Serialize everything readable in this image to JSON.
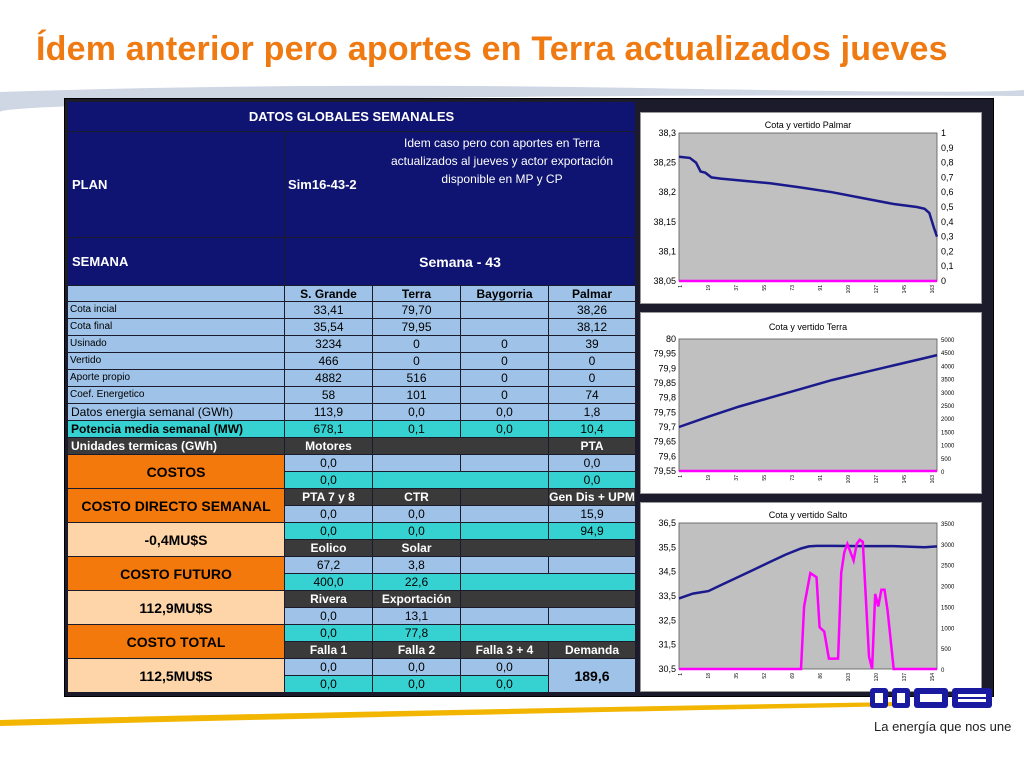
{
  "title": "Ídem anterior pero aportes en Terra actualizados jueves",
  "table": {
    "header": "DATOS GLOBALES SEMANALES",
    "plan_label": "PLAN",
    "plan_value": "Sim16-43-2",
    "plan_desc_1": "Idem caso pero con aportes en Terra",
    "plan_desc_2": "actualizados al jueves y actor exportación",
    "plan_desc_3": "disponible en MP y CP",
    "semana_label": "SEMANA",
    "semana_value": "Semana - 43",
    "columns": [
      "S. Grande",
      "Terra",
      "Baygorria",
      "Palmar"
    ],
    "rows": [
      {
        "label": "Cota incial",
        "values": [
          "33,41",
          "79,70",
          "",
          "38,26"
        ]
      },
      {
        "label": "Cota final",
        "values": [
          "35,54",
          "79,95",
          "",
          "38,12"
        ]
      },
      {
        "label": "Usinado",
        "values": [
          "3234",
          "0",
          "0",
          "39"
        ]
      },
      {
        "label": "Vertido",
        "values": [
          "466",
          "0",
          "0",
          "0"
        ]
      },
      {
        "label": "Aporte propio",
        "values": [
          "4882",
          "516",
          "0",
          "0"
        ]
      },
      {
        "label": "Coef. Energetico",
        "values": [
          "58",
          "101",
          "0",
          "74"
        ]
      }
    ],
    "energia_label": "Datos energia semanal  (GWh)",
    "energia_values": [
      "113,9",
      "0,0",
      "0,0",
      "1,8"
    ],
    "potencia_label": "Potencia media semanal (MW)",
    "potencia_values": [
      "678,1",
      "0,1",
      "0,0",
      "10,4"
    ],
    "termicas_label": "Unidades termicas (GWh)",
    "motores_label": "Motores",
    "pta_label": "PTA",
    "costos_label": "COSTOS",
    "motores_vals": [
      "0,0",
      "0,0"
    ],
    "pta_vals": [
      "0,0",
      "0,0"
    ],
    "costo_directo_label": "COSTO DIRECTO SEMANAL",
    "costo_directo_value": "-0,4MU$S",
    "pta78_label": "PTA 7 y 8",
    "ctr_label": "CTR",
    "gendis_label": "Gen Dis + UPM",
    "pta78_vals": [
      "0,0",
      "0,0"
    ],
    "ctr_vals": [
      "0,0",
      "0,0"
    ],
    "gendis_vals": [
      "15,9",
      "94,9"
    ],
    "eolico_label": "Eolico",
    "solar_label": "Solar",
    "eolico_vals": [
      "67,2",
      "400,0"
    ],
    "solar_vals": [
      "3,8",
      "22,6"
    ],
    "costo_futuro_label": "COSTO FUTURO",
    "costo_futuro_value": "112,9MU$S",
    "rivera_label": "Rivera",
    "export_label": "Exportación",
    "rivera_vals": [
      "0,0",
      "0,0"
    ],
    "export_vals": [
      "13,1",
      "77,8"
    ],
    "costo_total_label": "COSTO TOTAL",
    "costo_total_value": "112,5MU$S",
    "falla1_label": "Falla 1",
    "falla2_label": "Falla 2",
    "falla34_label": "Falla 3 + 4",
    "demanda_label": "Demanda",
    "falla1_vals": [
      "0,0",
      "0,0"
    ],
    "falla2_vals": [
      "0,0",
      "0,0"
    ],
    "falla34_vals": [
      "0,0",
      "0,0"
    ],
    "demanda_value": "189,6"
  },
  "chart_data": [
    {
      "type": "line",
      "title": "Cota  y vertido  Palmar",
      "x_ticks": [
        "1",
        "19",
        "37",
        "55",
        "73",
        "91",
        "109",
        "127",
        "145",
        "163"
      ],
      "y_ticks": [
        "38,3",
        "38,25",
        "38,2",
        "38,15",
        "38,1",
        "38,05"
      ],
      "y2_ticks": [
        "1",
        "0,9",
        "0,8",
        "0,7",
        "0,6",
        "0,5",
        "0,4",
        "0,3",
        "0,2",
        "0,1",
        "0"
      ],
      "ylim": [
        38.05,
        38.3
      ],
      "y2lim": [
        0,
        1
      ],
      "xlim": [
        1,
        168
      ],
      "series": [
        {
          "color": "#1a1a8c",
          "axis": "left",
          "x": [
            1,
            8,
            12,
            15,
            18,
            22,
            28,
            40,
            60,
            80,
            100,
            120,
            140,
            155,
            160,
            163,
            166,
            168
          ],
          "y": [
            38.26,
            38.258,
            38.25,
            38.235,
            38.233,
            38.225,
            38.223,
            38.22,
            38.215,
            38.208,
            38.2,
            38.19,
            38.18,
            38.175,
            38.172,
            38.165,
            38.14,
            38.125
          ]
        },
        {
          "color": "#ff00ff",
          "axis": "right",
          "x": [
            1,
            168
          ],
          "y": [
            0,
            0
          ]
        }
      ]
    },
    {
      "type": "line",
      "title": "Cota y vertido Terra",
      "x_ticks": [
        "1",
        "19",
        "37",
        "55",
        "73",
        "91",
        "109",
        "127",
        "145",
        "163"
      ],
      "y_ticks": [
        "80",
        "79,95",
        "79,9",
        "79,85",
        "79,8",
        "79,75",
        "79,7",
        "79,65",
        "79,6",
        "79,55"
      ],
      "y2_ticks": [
        "5000",
        "4500",
        "4000",
        "3500",
        "3000",
        "2500",
        "2000",
        "1500",
        "1000",
        "500",
        "0"
      ],
      "ylim": [
        79.55,
        80
      ],
      "y2lim": [
        0,
        5000
      ],
      "xlim": [
        1,
        168
      ],
      "series": [
        {
          "color": "#1a1a8c",
          "axis": "left",
          "x": [
            1,
            20,
            40,
            60,
            80,
            100,
            120,
            140,
            160,
            168
          ],
          "y": [
            79.7,
            79.735,
            79.77,
            79.8,
            79.83,
            79.86,
            79.885,
            79.91,
            79.935,
            79.945
          ]
        },
        {
          "color": "#ff00ff",
          "axis": "right",
          "x": [
            1,
            168
          ],
          "y": [
            0,
            0
          ]
        }
      ]
    },
    {
      "type": "line",
      "title": "Cota y vertido Salto",
      "x_ticks": [
        "1",
        "18",
        "35",
        "52",
        "69",
        "86",
        "103",
        "120",
        "137",
        "154"
      ],
      "y_ticks": [
        "36,5",
        "35,5",
        "34,5",
        "33,5",
        "32,5",
        "31,5",
        "30,5"
      ],
      "y2_ticks": [
        "3500",
        "3000",
        "2500",
        "2000",
        "1500",
        "1000",
        "500",
        "0"
      ],
      "ylim": [
        30.5,
        36.5
      ],
      "y2lim": [
        0,
        3500
      ],
      "xlim": [
        1,
        168
      ],
      "series": [
        {
          "color": "#1a1a8c",
          "axis": "left",
          "x": [
            1,
            10,
            20,
            30,
            40,
            50,
            60,
            70,
            80,
            85,
            90,
            100,
            120,
            140,
            160,
            168
          ],
          "y": [
            33.4,
            33.6,
            33.7,
            34.0,
            34.3,
            34.6,
            34.9,
            35.2,
            35.45,
            35.54,
            35.56,
            35.56,
            35.55,
            35.55,
            35.5,
            35.54
          ]
        },
        {
          "color": "#ff00ff",
          "axis": "right",
          "x": [
            1,
            80,
            82,
            86,
            90,
            92,
            95,
            98,
            104,
            106,
            108,
            110,
            114,
            116,
            118,
            120,
            124,
            126,
            128,
            130,
            132,
            134,
            136,
            140,
            168
          ],
          "y": [
            0,
            0,
            1500,
            2300,
            2200,
            1000,
            900,
            250,
            250,
            2300,
            2800,
            3000,
            2600,
            3000,
            3100,
            3050,
            300,
            0,
            1800,
            1500,
            1900,
            1900,
            1400,
            0,
            0
          ]
        }
      ]
    }
  ],
  "footer": {
    "tagline": "La energía que nos une"
  },
  "colors": {
    "title": "#f07a12",
    "navy": "#0f1472",
    "cyan": "#36d2d2",
    "light_blue": "#9fc3e8",
    "orange": "#f4790c",
    "peach": "#fdd5a9"
  }
}
